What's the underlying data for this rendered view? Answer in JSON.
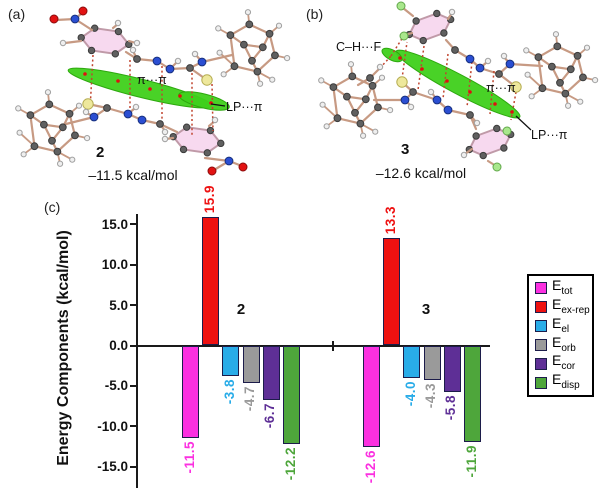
{
  "panels": {
    "a": {
      "tag": "(a)",
      "compound_label": "2",
      "energy": "–11.5 kcal/mol",
      "annotations": {
        "pi_pi": "π···π",
        "lp_pi": "LP···π"
      }
    },
    "b": {
      "tag": "(b)",
      "compound_label": "3",
      "energy": "–12.6 kcal/mol",
      "annotations": {
        "ch_f": "C–H···F",
        "pi_pi": "π···π",
        "lp_pi": "LP···π"
      }
    },
    "c": {
      "tag": "(c)"
    }
  },
  "chart_data": {
    "type": "bar",
    "title": "",
    "xlabel": "",
    "ylabel": "Energy Components (kcal/mol)",
    "yticks": [
      "15.0",
      "10.0",
      "5.0",
      "0.0",
      "-5.0",
      "-10.0",
      "-15.0"
    ],
    "ytick_values": [
      15,
      10,
      5,
      0,
      -5,
      -10,
      -15
    ],
    "ylim": [
      -17.5,
      17.5
    ],
    "grid": false,
    "legend_position": "right",
    "legend_symbol": "E",
    "groups": [
      "2",
      "3"
    ],
    "series": [
      {
        "name": "E_tot",
        "legend_sub": "tot",
        "color": "#fb30e0",
        "values": [
          -11.5,
          -12.6
        ]
      },
      {
        "name": "E_ex-rep",
        "legend_sub": "ex-rep",
        "color": "#ee1111",
        "values": [
          15.9,
          13.3
        ]
      },
      {
        "name": "E_el",
        "legend_sub": "el",
        "color": "#29ace8",
        "values": [
          -3.8,
          -4.0
        ]
      },
      {
        "name": "E_orb",
        "legend_sub": "orb",
        "color": "#9a9a9a",
        "values": [
          -4.7,
          -4.3
        ]
      },
      {
        "name": "E_cor",
        "legend_sub": "cor",
        "color": "#5e2f96",
        "values": [
          -6.7,
          -5.8
        ]
      },
      {
        "name": "E_disp",
        "legend_sub": "disp",
        "color": "#4ea63b",
        "values": [
          -12.2,
          -11.9
        ]
      }
    ]
  },
  "colors": {
    "carbon": "#606060",
    "carbon_edge": "#3c3c3c",
    "hydrogen": "#efefef",
    "hydrogen_edge": "#a0a0a0",
    "nitrogen": "#2b4ed2",
    "nitrogen_edge": "#17307e",
    "oxygen": "#e21212",
    "oxygen_edge": "#8c0d0d",
    "sulfur": "#eee89c",
    "sulfur_edge": "#b5ad52",
    "fluorine": "#a9e78c",
    "fluorine_edge": "#62a84b",
    "ring_fill": "#f7d9ef",
    "ring_edge": "#c09aa8",
    "bond": "#c79a83",
    "isosurface": "#3fd01b",
    "isosurface_edge": "#2da80e",
    "contact_line": "#c0442e",
    "critical_point": "#dd1111",
    "axis": "#1a1a1a"
  }
}
